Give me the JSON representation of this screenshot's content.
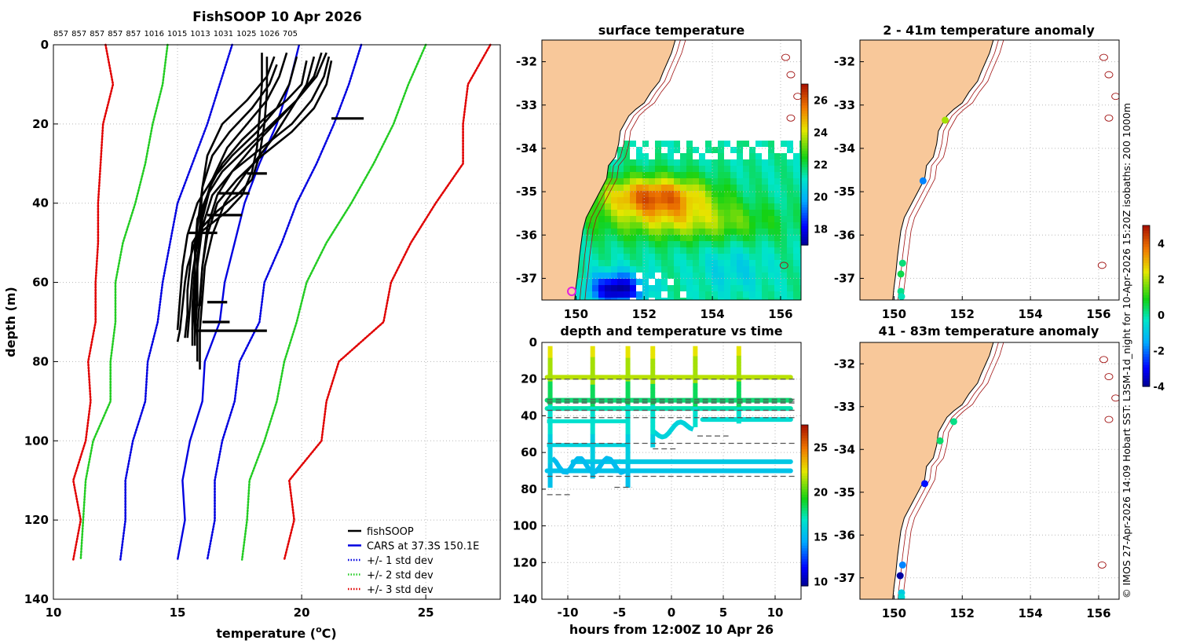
{
  "colors": {
    "fishsoop": "#000000",
    "cars": "#0000e0",
    "std1": "#0000e0",
    "std2": "#22cc22",
    "std3": "#e00000",
    "land": "#f8c89a",
    "isobath": "#a01010",
    "grid": "#b8b8b8",
    "marker_magenta": "#e020e0"
  },
  "chart_data": [
    {
      "id": "profile",
      "type": "line",
      "title": "FishSOOP 10 Apr 2026",
      "top_labels": [
        "857",
        "857",
        "857",
        "857",
        "857",
        "1016",
        "1015",
        "1013",
        "1031",
        "1025",
        "1026",
        "705"
      ],
      "xlabel_prefix": "temperature (",
      "xlabel_sup": "o",
      "xlabel_suffix": "C)",
      "ylabel": "depth (m)",
      "xlim": [
        10,
        28
      ],
      "ylim": [
        0,
        140
      ],
      "y_reversed": true,
      "xticks": [
        10,
        15,
        20,
        25
      ],
      "yticks": [
        0,
        20,
        40,
        60,
        80,
        100,
        120,
        140
      ],
      "legend": {
        "placement": "bottom-right",
        "entries": [
          {
            "label": "fishSOOP",
            "style": "solid",
            "color": "#000000"
          },
          {
            "label": "CARS at 37.3S 150.1E",
            "style": "solid",
            "color": "#0000e0"
          },
          {
            "label": "+/- 1 std dev",
            "style": "dotted",
            "color": "#0000e0"
          },
          {
            "label": "+/- 2 std dev",
            "style": "dotted",
            "color": "#22cc22"
          },
          {
            "label": "+/- 3 std dev",
            "style": "dotted",
            "color": "#e00000"
          }
        ]
      },
      "cars": {
        "depth": [
          0,
          10,
          20,
          30,
          40,
          50,
          60,
          70,
          80,
          90,
          100,
          110,
          120,
          130
        ],
        "mean": [
          19.9,
          19.5,
          19.0,
          18.3,
          17.7,
          17.3,
          16.9,
          16.7,
          16.1,
          16.0,
          15.5,
          15.2,
          15.3,
          15.0
        ],
        "minus1": [
          17.2,
          16.7,
          16.2,
          15.6,
          15.0,
          14.7,
          14.4,
          14.2,
          13.8,
          13.7,
          13.2,
          12.9,
          12.9,
          12.7
        ],
        "plus1": [
          22.4,
          21.9,
          21.3,
          20.6,
          19.8,
          19.2,
          18.5,
          18.3,
          17.5,
          17.3,
          16.8,
          16.5,
          16.5,
          16.2
        ],
        "minus2": [
          14.6,
          14.4,
          14.0,
          13.7,
          13.3,
          12.8,
          12.5,
          12.5,
          12.3,
          12.3,
          11.6,
          11.3,
          11.2,
          11.1
        ],
        "plus2": [
          25.0,
          24.3,
          23.7,
          22.9,
          22.0,
          21.0,
          20.2,
          19.8,
          19.3,
          19.0,
          18.5,
          17.9,
          17.8,
          17.6
        ],
        "minus3": [
          12.1,
          12.4,
          12.0,
          11.9,
          11.8,
          11.8,
          11.7,
          11.7,
          11.4,
          11.5,
          11.3,
          10.8,
          11.1,
          10.8
        ],
        "plus3": [
          27.6,
          26.7,
          26.5,
          26.5,
          25.4,
          24.4,
          23.6,
          23.3,
          21.5,
          21.0,
          20.8,
          19.5,
          19.7,
          19.3
        ]
      },
      "profiles": [
        {
          "temp": [
            18.4,
            18.4,
            18.3,
            18.2,
            18.0,
            17.6,
            17.0,
            16.4,
            15.8,
            15.6,
            15.4,
            15.3,
            15.2,
            15.1,
            15.0
          ],
          "depth": [
            2,
            10,
            18,
            26,
            32,
            38,
            42,
            45,
            48,
            52,
            56,
            60,
            66,
            72,
            75
          ]
        },
        {
          "temp": [
            18.6,
            18.6,
            18.5,
            18.3,
            18.0,
            17.4,
            16.6,
            16.0,
            15.6,
            15.5,
            15.4,
            15.4,
            15.3
          ],
          "depth": [
            3,
            12,
            20,
            28,
            34,
            38,
            42,
            46,
            50,
            56,
            62,
            68,
            74
          ]
        },
        {
          "temp": [
            20.2,
            20.0,
            19.4,
            18.6,
            17.6,
            16.8,
            16.3,
            16.0,
            15.8,
            15.6,
            15.5,
            15.4
          ],
          "depth": [
            4,
            10,
            14,
            18,
            24,
            30,
            36,
            42,
            50,
            58,
            66,
            74
          ]
        },
        {
          "temp": [
            20.8,
            20.5,
            19.8,
            18.8,
            17.8,
            16.8,
            16.2,
            15.8,
            15.7,
            15.7,
            15.6
          ],
          "depth": [
            2,
            8,
            14,
            20,
            26,
            32,
            38,
            44,
            52,
            62,
            72
          ]
        },
        {
          "temp": [
            21.1,
            20.9,
            20.4,
            19.6,
            18.4,
            17.2,
            16.4,
            16.0,
            15.8,
            15.7,
            15.7
          ],
          "depth": [
            3,
            8,
            14,
            20,
            26,
            32,
            38,
            46,
            56,
            66,
            76
          ]
        },
        {
          "temp": [
            21.2,
            21.0,
            20.5,
            19.6,
            18.4,
            17.4,
            16.6,
            16.2,
            16.0,
            15.9,
            15.8,
            15.8
          ],
          "depth": [
            4,
            10,
            16,
            22,
            28,
            34,
            40,
            48,
            56,
            64,
            72,
            80
          ]
        },
        {
          "temp": [
            20.5,
            20.2,
            19.6,
            18.8,
            17.8,
            16.9,
            16.4,
            16.1,
            16.0,
            15.9,
            15.9
          ],
          "depth": [
            3,
            10,
            16,
            24,
            32,
            40,
            48,
            56,
            64,
            72,
            82
          ]
        },
        {
          "temp": [
            19.8,
            19.5,
            19.0,
            18.2,
            17.2,
            16.4,
            15.8,
            15.4,
            15.2,
            15.1,
            15.0
          ],
          "depth": [
            3,
            10,
            16,
            22,
            28,
            34,
            40,
            48,
            56,
            64,
            72
          ]
        },
        {
          "temp": [
            19.4,
            19.1,
            18.6,
            17.8,
            17.0,
            16.4,
            16.0,
            15.8,
            15.8,
            15.7
          ],
          "depth": [
            2,
            8,
            14,
            20,
            26,
            34,
            44,
            54,
            64,
            74
          ]
        },
        {
          "temp": [
            19.0,
            18.7,
            18.0,
            17.1,
            16.4,
            16.0,
            15.9,
            15.8,
            15.8
          ],
          "depth": [
            5,
            10,
            16,
            22,
            28,
            36,
            46,
            56,
            66
          ]
        },
        {
          "temp": [
            18.9,
            18.6,
            17.8,
            16.8,
            16.2,
            16.0,
            15.8,
            15.7,
            15.6,
            15.6
          ],
          "depth": [
            3,
            8,
            14,
            20,
            28,
            36,
            46,
            56,
            66,
            76
          ]
        },
        {
          "temp": [
            21.0,
            20.6,
            19.8,
            18.9,
            18.0,
            17.2,
            16.6,
            16.2,
            16.0,
            15.9
          ],
          "depth": [
            2,
            8,
            14,
            20,
            26,
            32,
            38,
            46,
            56,
            66
          ]
        }
      ],
      "horizontal_segments": [
        {
          "temp": [
            21.2,
            22.5
          ],
          "depth": 18.6
        },
        {
          "temp": [
            17.8,
            18.6
          ],
          "depth": 32.5
        },
        {
          "temp": [
            16.6,
            17.9
          ],
          "depth": 37.5
        },
        {
          "temp": [
            16.2,
            17.6
          ],
          "depth": 43.0
        },
        {
          "temp": [
            15.4,
            16.6
          ],
          "depth": 47.5
        },
        {
          "temp": [
            16.2,
            17.0
          ],
          "depth": 65.0
        },
        {
          "temp": [
            16.0,
            17.1
          ],
          "depth": 70.0
        },
        {
          "temp": [
            15.8,
            18.6
          ],
          "depth": 72.2
        }
      ]
    },
    {
      "id": "surface",
      "type": "heatmap",
      "title": "surface temperature",
      "xlim": [
        149.0,
        156.6
      ],
      "ylim": [
        -37.5,
        -31.5
      ],
      "xticks": [
        150,
        152,
        154,
        156
      ],
      "yticks": [
        -32,
        -33,
        -34,
        -35,
        -36,
        -37
      ],
      "clim": [
        17,
        27
      ],
      "cticks": [
        18,
        20,
        22,
        24,
        26
      ]
    },
    {
      "id": "timeseries",
      "type": "scatter",
      "title": "depth and temperature vs time",
      "xlabel": "hours from 12:00Z 10 Apr 26",
      "xlim": [
        -12.5,
        12.5
      ],
      "ylim": [
        0,
        140
      ],
      "y_reversed": true,
      "xticks": [
        -10,
        -5,
        0,
        5,
        10
      ],
      "yticks": [
        0,
        20,
        40,
        60,
        80,
        100,
        120,
        140
      ],
      "clim": [
        9.5,
        27.5
      ],
      "cticks": [
        10,
        15,
        20,
        25
      ],
      "dashed_depths": [
        20,
        31,
        32,
        33,
        37,
        41,
        55,
        73
      ],
      "drops": [
        {
          "t": -11.7,
          "from": 2,
          "to": 79
        },
        {
          "t": -7.6,
          "from": 2,
          "to": 74
        },
        {
          "t": -4.2,
          "from": 2,
          "to": 79
        },
        {
          "t": -1.8,
          "from": 2,
          "to": 57
        },
        {
          "t": 2.3,
          "from": 2,
          "to": 46
        },
        {
          "t": 6.5,
          "from": 2,
          "to": 44
        }
      ],
      "bands": [
        {
          "depth": 19,
          "from": -12,
          "to": 11.5,
          "temp": 21.8
        },
        {
          "depth": 31.5,
          "from": -12,
          "to": 11.5,
          "temp": 18.2
        },
        {
          "depth": 36,
          "from": -12,
          "to": 11.5,
          "temp": 17.4
        },
        {
          "depth": 42,
          "from": 3,
          "to": 11.5,
          "temp": 16.6
        },
        {
          "depth": 65,
          "from": -9.5,
          "to": 11.5,
          "temp": 15.8
        },
        {
          "depth": 70,
          "from": -12,
          "to": 11.5,
          "temp": 15.6
        }
      ]
    },
    {
      "id": "anom1",
      "type": "scatter",
      "title": "2 - 41m temperature anomaly",
      "xlim": [
        149.0,
        156.6
      ],
      "ylim": [
        -37.5,
        -31.5
      ],
      "xticks": [
        150,
        152,
        154,
        156
      ],
      "yticks": [
        -32,
        -33,
        -34,
        -35,
        -36,
        -37
      ],
      "points": [
        {
          "lon": 151.5,
          "lat": -33.35,
          "anom": 2.0
        },
        {
          "lon": 150.85,
          "lat": -34.75,
          "anom": -1.8
        },
        {
          "lon": 150.25,
          "lat": -36.65,
          "anom": 0.3
        },
        {
          "lon": 150.2,
          "lat": -36.9,
          "anom": 0.6
        },
        {
          "lon": 150.2,
          "lat": -37.3,
          "anom": 0.2
        },
        {
          "lon": 150.22,
          "lat": -37.42,
          "anom": -0.1
        }
      ]
    },
    {
      "id": "anom2",
      "type": "scatter",
      "title": "41 - 83m temperature anomaly",
      "xlim": [
        149.0,
        156.6
      ],
      "ylim": [
        -37.5,
        -31.5
      ],
      "xticks": [
        150,
        152,
        154,
        156
      ],
      "yticks": [
        -32,
        -33,
        -34,
        -35,
        -36,
        -37
      ],
      "clim": [
        -4,
        5
      ],
      "cticks": [
        -4,
        -2,
        0,
        2,
        4
      ],
      "points": [
        {
          "lon": 151.75,
          "lat": -33.35,
          "anom": 0.2
        },
        {
          "lon": 151.35,
          "lat": -33.8,
          "anom": 0.4
        },
        {
          "lon": 150.9,
          "lat": -34.8,
          "anom": -2.8
        },
        {
          "lon": 150.25,
          "lat": -36.7,
          "anom": -1.8
        },
        {
          "lon": 150.18,
          "lat": -36.95,
          "anom": -3.8
        },
        {
          "lon": 150.22,
          "lat": -37.35,
          "anom": -0.8
        },
        {
          "lon": 150.22,
          "lat": -37.45,
          "anom": -0.5
        }
      ]
    }
  ],
  "side_text": "© IMOS 27-Apr-2026 14:09 Hobart SST: L3SM-1d_night for 10-Apr-2026 15:20Z isobaths: 200  1000m"
}
